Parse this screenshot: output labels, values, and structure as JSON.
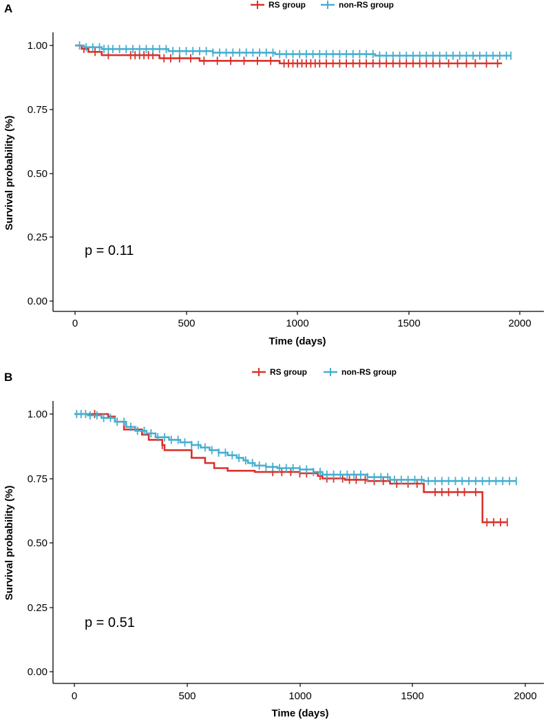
{
  "chart_data": [
    {
      "type": "line",
      "subtype": "kaplan-meier",
      "panel": "A",
      "xlabel": "Time (days)",
      "ylabel": "Survival probability (%)",
      "xlim": [
        0,
        2000
      ],
      "ylim": [
        0,
        1
      ],
      "xticks": [
        "0",
        "500",
        "1000",
        "1500",
        "2000"
      ],
      "yticks": [
        "0.00",
        "0.25",
        "0.50",
        "0.75",
        "1.00"
      ],
      "xtick_values": [
        0,
        500,
        1000,
        1500,
        2000
      ],
      "ytick_values": [
        0,
        0.25,
        0.5,
        0.75,
        1.0
      ],
      "annotation": "p = 0.11",
      "legend_position": "top",
      "grid": false,
      "series": [
        {
          "name": "RS group",
          "color": "#d9312b",
          "steps": [
            [
              0,
              1.0
            ],
            [
              30,
              0.987
            ],
            [
              60,
              0.975
            ],
            [
              120,
              0.962
            ],
            [
              380,
              0.95
            ],
            [
              560,
              0.94
            ],
            [
              920,
              0.93
            ],
            [
              1920,
              0.93
            ]
          ],
          "censors": [
            40,
            90,
            150,
            250,
            270,
            290,
            310,
            330,
            350,
            400,
            430,
            470,
            520,
            580,
            640,
            700,
            760,
            820,
            880,
            940,
            960,
            980,
            1000,
            1020,
            1040,
            1060,
            1080,
            1100,
            1130,
            1160,
            1190,
            1220,
            1250,
            1280,
            1310,
            1340,
            1370,
            1400,
            1430,
            1460,
            1490,
            1520,
            1550,
            1580,
            1610,
            1640,
            1680,
            1720,
            1760,
            1800,
            1850,
            1900
          ]
        },
        {
          "name": "non-RS group",
          "color": "#46aed0",
          "steps": [
            [
              0,
              1.0
            ],
            [
              40,
              0.993
            ],
            [
              120,
              0.986
            ],
            [
              420,
              0.978
            ],
            [
              620,
              0.972
            ],
            [
              900,
              0.966
            ],
            [
              1350,
              0.96
            ],
            [
              1960,
              0.96
            ]
          ],
          "censors": [
            20,
            50,
            80,
            110,
            130,
            150,
            170,
            200,
            230,
            260,
            290,
            320,
            350,
            380,
            410,
            440,
            470,
            500,
            530,
            560,
            590,
            620,
            650,
            680,
            710,
            740,
            770,
            800,
            830,
            860,
            890,
            920,
            950,
            980,
            1010,
            1040,
            1070,
            1100,
            1130,
            1160,
            1190,
            1220,
            1250,
            1280,
            1310,
            1340,
            1370,
            1400,
            1430,
            1460,
            1490,
            1520,
            1550,
            1580,
            1610,
            1640,
            1670,
            1700,
            1730,
            1760,
            1790,
            1820,
            1850,
            1880,
            1910,
            1940,
            1960
          ]
        }
      ]
    },
    {
      "type": "line",
      "subtype": "kaplan-meier",
      "panel": "B",
      "xlabel": "Time (days)",
      "ylabel": "Survival probability (%)",
      "xlim": [
        0,
        2000
      ],
      "ylim": [
        0,
        1
      ],
      "xticks": [
        "0",
        "500",
        "1000",
        "1500",
        "2000"
      ],
      "yticks": [
        "0.00",
        "0.25",
        "0.50",
        "0.75",
        "1.00"
      ],
      "xtick_values": [
        0,
        500,
        1000,
        1500,
        2000
      ],
      "ytick_values": [
        0,
        0.25,
        0.5,
        0.75,
        1.0
      ],
      "annotation": "p = 0.51",
      "legend_position": "top",
      "grid": false,
      "series": [
        {
          "name": "RS group",
          "color": "#d9312b",
          "steps": [
            [
              0,
              1.0
            ],
            [
              150,
              0.99
            ],
            [
              180,
              0.97
            ],
            [
              220,
              0.94
            ],
            [
              300,
              0.92
            ],
            [
              330,
              0.9
            ],
            [
              390,
              0.88
            ],
            [
              400,
              0.86
            ],
            [
              500,
              0.86
            ],
            [
              520,
              0.83
            ],
            [
              580,
              0.81
            ],
            [
              620,
              0.79
            ],
            [
              680,
              0.78
            ],
            [
              800,
              0.775
            ],
            [
              1000,
              0.77
            ],
            [
              1080,
              0.76
            ],
            [
              1100,
              0.75
            ],
            [
              1200,
              0.745
            ],
            [
              1300,
              0.74
            ],
            [
              1400,
              0.73
            ],
            [
              1550,
              0.697
            ],
            [
              1810,
              0.58
            ],
            [
              1920,
              0.58
            ]
          ],
          "censors": [
            90,
            390,
            880,
            920,
            960,
            1000,
            1030,
            1090,
            1120,
            1150,
            1190,
            1220,
            1250,
            1290,
            1330,
            1370,
            1430,
            1480,
            1520,
            1600,
            1630,
            1660,
            1700,
            1730,
            1780,
            1830,
            1860,
            1890,
            1920
          ]
        },
        {
          "name": "non-RS group",
          "color": "#46aed0",
          "steps": [
            [
              0,
              1.0
            ],
            [
              60,
              0.995
            ],
            [
              120,
              0.985
            ],
            [
              180,
              0.97
            ],
            [
              230,
              0.95
            ],
            [
              270,
              0.935
            ],
            [
              320,
              0.925
            ],
            [
              360,
              0.91
            ],
            [
              420,
              0.9
            ],
            [
              470,
              0.89
            ],
            [
              520,
              0.88
            ],
            [
              560,
              0.87
            ],
            [
              600,
              0.86
            ],
            [
              640,
              0.85
            ],
            [
              680,
              0.84
            ],
            [
              720,
              0.83
            ],
            [
              750,
              0.82
            ],
            [
              770,
              0.81
            ],
            [
              800,
              0.8
            ],
            [
              850,
              0.795
            ],
            [
              900,
              0.79
            ],
            [
              1000,
              0.785
            ],
            [
              1060,
              0.775
            ],
            [
              1100,
              0.765
            ],
            [
              1300,
              0.755
            ],
            [
              1400,
              0.745
            ],
            [
              1550,
              0.74
            ],
            [
              1960,
              0.74
            ]
          ],
          "censors": [
            10,
            30,
            50,
            70,
            100,
            130,
            160,
            190,
            220,
            250,
            280,
            310,
            340,
            370,
            400,
            430,
            460,
            490,
            520,
            550,
            580,
            610,
            640,
            670,
            700,
            730,
            760,
            790,
            820,
            850,
            880,
            910,
            940,
            970,
            1000,
            1030,
            1060,
            1090,
            1120,
            1150,
            1180,
            1210,
            1240,
            1270,
            1300,
            1330,
            1360,
            1390,
            1420,
            1450,
            1480,
            1510,
            1540,
            1570,
            1600,
            1630,
            1660,
            1690,
            1720,
            1750,
            1780,
            1810,
            1840,
            1870,
            1900,
            1930,
            1960
          ]
        }
      ]
    }
  ]
}
